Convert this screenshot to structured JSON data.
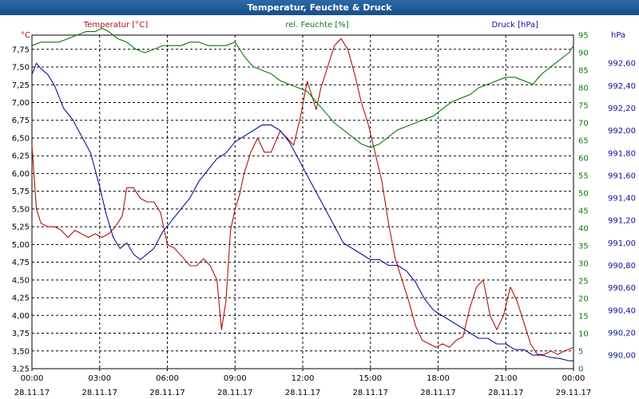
{
  "window": {
    "title": "Temperatur, Feuchte & Druck"
  },
  "chart_data": {
    "type": "line",
    "title": "Temperatur, Feuchte & Druck",
    "colors": {
      "temperature": "#b01010",
      "humidity": "#0a7a0a",
      "pressure": "#10109a",
      "grid": "#000000"
    },
    "axes": {
      "temperature": {
        "unit": "°C",
        "ylim": [
          3.25,
          7.95
        ],
        "ticks": [
          "3,25",
          "3,50",
          "3,75",
          "4,00",
          "4,25",
          "4,50",
          "4,75",
          "5,00",
          "5,25",
          "5,50",
          "5,75",
          "6,00",
          "6,25",
          "6,50",
          "6,75",
          "7,00",
          "7,25",
          "7,50",
          "7,75"
        ]
      },
      "humidity": {
        "unit": "%",
        "ylim": [
          0,
          95
        ],
        "ticks": [
          "0",
          "5",
          "10",
          "15",
          "20",
          "25",
          "30",
          "35",
          "40",
          "45",
          "50",
          "55",
          "60",
          "65",
          "70",
          "75",
          "80",
          "85",
          "90",
          "95"
        ]
      },
      "pressure": {
        "unit": "hPa",
        "ylim": [
          989.88,
          992.85
        ],
        "ticks": [
          "990,00",
          "990,20",
          "990,40",
          "990,60",
          "990,80",
          "991,00",
          "991,20",
          "991,40",
          "991,60",
          "991,80",
          "992,00",
          "992,20",
          "992,40",
          "992,60"
        ]
      }
    },
    "x_ticks": [
      {
        "time": "00:00",
        "date": "28.11.17"
      },
      {
        "time": "03:00",
        "date": "28.11.17"
      },
      {
        "time": "06:00",
        "date": "28.11.17"
      },
      {
        "time": "09:00",
        "date": "28.11.17"
      },
      {
        "time": "12:00",
        "date": "28.11.17"
      },
      {
        "time": "15:00",
        "date": "28.11.17"
      },
      {
        "time": "18:00",
        "date": "28.11.17"
      },
      {
        "time": "21:00",
        "date": "28.11.17"
      },
      {
        "time": "00:00",
        "date": "29.11.17"
      }
    ],
    "xlim_hours": [
      0,
      24
    ],
    "series": [
      {
        "key": "temperature",
        "name": "Temperatur [°C]",
        "axis": "temperature",
        "x": [
          0,
          0.2,
          0.4,
          0.7,
          1,
          1.3,
          1.6,
          1.9,
          2.2,
          2.5,
          2.8,
          3.1,
          3.4,
          3.7,
          4,
          4.2,
          4.5,
          4.8,
          5.1,
          5.4,
          5.7,
          6,
          6.3,
          6.6,
          7,
          7.3,
          7.6,
          7.9,
          8.2,
          8.4,
          8.6,
          8.8,
          9,
          9.2,
          9.4,
          9.7,
          10,
          10.3,
          10.6,
          11,
          11.3,
          11.6,
          11.9,
          12.2,
          12.4,
          12.6,
          12.8,
          13.1,
          13.4,
          13.7,
          14,
          14.3,
          14.6,
          14.9,
          15.2,
          15.5,
          15.8,
          16.1,
          16.4,
          16.7,
          17,
          17.3,
          17.6,
          17.9,
          18.2,
          18.5,
          18.8,
          19.1,
          19.4,
          19.7,
          20,
          20.3,
          20.6,
          20.9,
          21.2,
          21.5,
          21.8,
          22.1,
          22.4,
          22.7,
          23,
          23.3,
          23.6,
          24
        ],
        "values": [
          6.4,
          5.5,
          5.3,
          5.25,
          5.25,
          5.2,
          5.1,
          5.2,
          5.15,
          5.1,
          5.15,
          5.1,
          5.15,
          5.25,
          5.4,
          5.8,
          5.8,
          5.65,
          5.6,
          5.6,
          5.45,
          5.0,
          4.95,
          4.85,
          4.7,
          4.7,
          4.8,
          4.7,
          4.5,
          3.8,
          4.2,
          5.2,
          5.5,
          5.7,
          6.0,
          6.3,
          6.5,
          6.3,
          6.3,
          6.6,
          6.5,
          6.4,
          6.8,
          7.3,
          7.1,
          6.9,
          7.2,
          7.5,
          7.8,
          7.9,
          7.75,
          7.4,
          7.0,
          6.7,
          6.3,
          5.9,
          5.3,
          4.8,
          4.5,
          4.2,
          3.85,
          3.65,
          3.6,
          3.55,
          3.6,
          3.55,
          3.65,
          3.7,
          4.1,
          4.4,
          4.5,
          4.0,
          3.8,
          4.0,
          4.4,
          4.2,
          3.9,
          3.6,
          3.45,
          3.45,
          3.5,
          3.45,
          3.5,
          3.55
        ]
      },
      {
        "key": "humidity",
        "name": "rel. Feuchte [%]",
        "axis": "humidity",
        "x": [
          0,
          0.4,
          0.8,
          1.2,
          1.6,
          2,
          2.4,
          2.8,
          3.1,
          3.4,
          3.8,
          4.2,
          4.6,
          5,
          5.4,
          5.8,
          6.2,
          6.6,
          7,
          7.4,
          7.8,
          8.2,
          8.6,
          9,
          9.4,
          9.8,
          10.2,
          10.6,
          11,
          11.4,
          11.8,
          12.2,
          12.6,
          13,
          13.4,
          13.8,
          14.2,
          14.6,
          15,
          15.4,
          15.8,
          16.2,
          16.6,
          17,
          17.4,
          17.8,
          18.2,
          18.6,
          19,
          19.4,
          19.8,
          20.2,
          20.6,
          21,
          21.4,
          21.8,
          22.2,
          22.6,
          23,
          23.4,
          23.8,
          24
        ],
        "values": [
          92,
          93,
          93,
          93,
          94,
          95,
          96,
          96,
          97,
          96,
          94,
          93,
          91,
          90,
          91,
          92,
          92,
          92,
          93,
          93,
          92,
          92,
          92,
          93,
          89,
          86,
          85,
          84,
          82,
          81,
          80,
          79,
          76,
          73,
          70,
          68,
          66,
          64,
          63,
          64,
          66,
          68,
          69,
          70,
          71,
          72,
          74,
          76,
          77,
          78,
          80,
          81,
          82,
          83,
          83,
          82,
          81,
          84,
          86,
          88,
          90,
          92
        ]
      },
      {
        "key": "pressure",
        "name": "Druck [hPa]",
        "axis": "pressure",
        "x": [
          0,
          0.2,
          0.4,
          0.7,
          1,
          1.4,
          1.8,
          2.2,
          2.6,
          3,
          3.3,
          3.6,
          3.9,
          4.2,
          4.5,
          4.8,
          5.1,
          5.4,
          5.8,
          6.2,
          6.6,
          7,
          7.4,
          7.8,
          8.2,
          8.6,
          9,
          9.4,
          9.8,
          10.2,
          10.6,
          11,
          11.4,
          11.8,
          12.2,
          12.6,
          13,
          13.4,
          13.8,
          14.2,
          14.6,
          15,
          15.4,
          15.8,
          16.2,
          16.6,
          17,
          17.4,
          17.8,
          18.2,
          18.6,
          19,
          19.4,
          19.8,
          20.2,
          20.6,
          21,
          21.4,
          21.8,
          22.2,
          22.6,
          23,
          23.4,
          23.8,
          24
        ],
        "values": [
          992.5,
          992.6,
          992.55,
          992.5,
          992.4,
          992.2,
          992.1,
          991.95,
          991.8,
          991.5,
          991.25,
          991.05,
          990.95,
          991.0,
          990.9,
          990.85,
          990.9,
          990.95,
          991.1,
          991.2,
          991.3,
          991.4,
          991.55,
          991.65,
          991.75,
          991.8,
          991.9,
          991.95,
          992.0,
          992.05,
          992.05,
          992.0,
          991.9,
          991.75,
          991.6,
          991.45,
          991.3,
          991.15,
          991.0,
          990.95,
          990.9,
          990.85,
          990.85,
          990.8,
          990.8,
          990.75,
          990.65,
          990.5,
          990.4,
          990.35,
          990.3,
          990.25,
          990.2,
          990.15,
          990.15,
          990.1,
          990.1,
          990.05,
          990.05,
          990.0,
          990.0,
          989.98,
          989.97,
          989.95,
          989.95
        ]
      }
    ]
  }
}
